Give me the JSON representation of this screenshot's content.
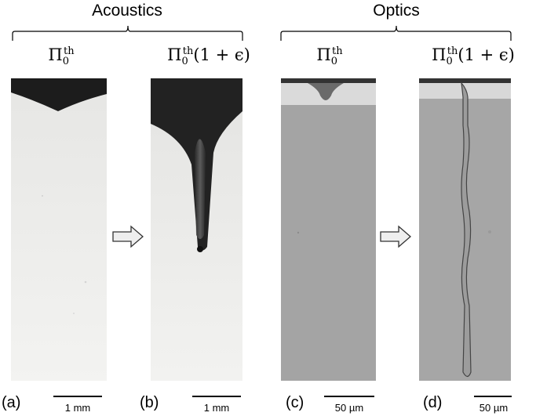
{
  "headers": {
    "acoustics": "Acoustics",
    "optics": "Optics"
  },
  "panel_labels": {
    "threshold_base": "Π",
    "threshold_sup": "th",
    "threshold_sub": "0",
    "above_suffix": "(1 + ϵ)"
  },
  "panels": [
    {
      "letter": "(a)",
      "scale": "1 mm"
    },
    {
      "letter": "(b)",
      "scale": "1 mm"
    },
    {
      "letter": "(c)",
      "scale": "50 µm"
    },
    {
      "letter": "(d)",
      "scale": "50 µm"
    }
  ],
  "colors": {
    "acoustic_bg": "#f1f1ef",
    "acoustic_liquid": "#1c1c1c",
    "optic_bg": "#a4a4a4",
    "optic_top": "#dadada",
    "optic_liquid": "#9a9a9a",
    "arrow_fill": "#eeeeee"
  }
}
